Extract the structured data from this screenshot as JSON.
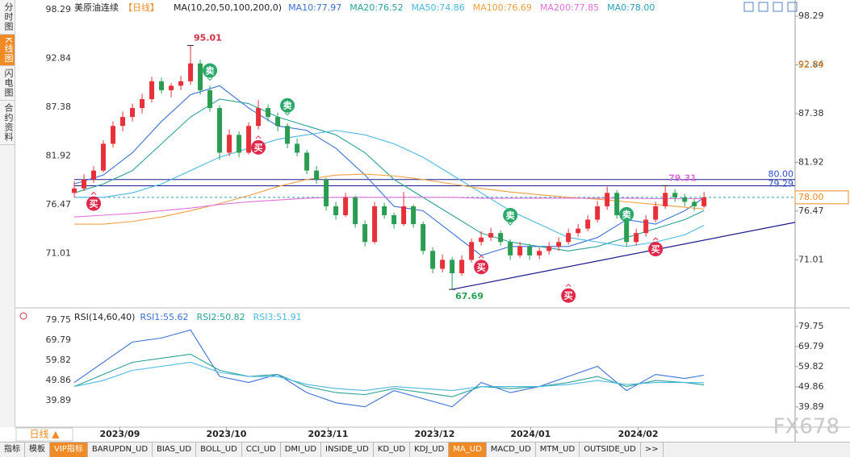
{
  "sidebar": [
    "分时图",
    "K线图",
    "闪电图",
    "合约资料"
  ],
  "tabs": [
    "指标",
    "模板",
    "VIP指标",
    "BARUPDN_UD",
    "BIAS_UD",
    "BOLL_UD",
    "CCI_UD",
    "DMI_UD",
    "INSIDE_UD",
    "KD_UD",
    "KDJ_UD",
    "MA_UD",
    "MACD_UD",
    "MTM_UD",
    "OUTSIDE_UD",
    ">>"
  ],
  "period_button": "日线 ▲",
  "watermark": "FX678",
  "chart_data": [
    {
      "type": "candlestick",
      "title": "美原油连续",
      "period": "【日线】",
      "indicator": "MA(10,20,50,100,200,0)",
      "up_color": "#e8303a",
      "down_color": "#2a9d52",
      "ylim": [
        65.8,
        99.2
      ],
      "yticks": [
        98.29,
        92.84,
        87.38,
        81.92,
        76.47,
        71.01
      ],
      "xlim": [
        -6,
        74.4
      ],
      "xticks": [
        {
          "value": 4.7,
          "label": "2023/09"
        },
        {
          "value": 15.7,
          "label": "2023/10"
        },
        {
          "value": 26.2,
          "label": "2023/11"
        },
        {
          "value": 37.2,
          "label": "2023/12"
        },
        {
          "value": 47.1,
          "label": "2024/01"
        },
        {
          "value": 58.2,
          "label": "2024/02"
        }
      ],
      "candles": [
        [
          78.5,
          79.8,
          78,
          79
        ],
        [
          79,
          80.6,
          78.7,
          80
        ],
        [
          80,
          81.5,
          79.6,
          81
        ],
        [
          81,
          84.4,
          80.8,
          84
        ],
        [
          84,
          86.5,
          83.6,
          86
        ],
        [
          86,
          87.6,
          85.4,
          87
        ],
        [
          87,
          88.5,
          86.5,
          88
        ],
        [
          88,
          89.6,
          87.4,
          89
        ],
        [
          89,
          91.5,
          88.6,
          91
        ],
        [
          91,
          91.4,
          89.6,
          90
        ],
        [
          90,
          90.8,
          89.2,
          90.5
        ],
        [
          90.5,
          91.6,
          90,
          91
        ],
        [
          91,
          95.01,
          90.6,
          93
        ],
        [
          93,
          93.4,
          89.5,
          90
        ],
        [
          90,
          90.5,
          87.6,
          88
        ],
        [
          88,
          88.3,
          82.2,
          83
        ],
        [
          83,
          85.6,
          82.6,
          85
        ],
        [
          85,
          85.4,
          82.5,
          83
        ],
        [
          83,
          86.4,
          82.8,
          86
        ],
        [
          86,
          88.9,
          85.6,
          88
        ],
        [
          88,
          88.4,
          86.5,
          87
        ],
        [
          87,
          87.5,
          85.4,
          86
        ],
        [
          86,
          86.3,
          83.5,
          84
        ],
        [
          84,
          84.6,
          82.6,
          83
        ],
        [
          83,
          83.3,
          80.6,
          81
        ],
        [
          81,
          81.5,
          79.5,
          80
        ],
        [
          80,
          80.2,
          76.5,
          77
        ],
        [
          77,
          77.5,
          75.5,
          76
        ],
        [
          76,
          78.5,
          75.8,
          78
        ],
        [
          78,
          78.2,
          74.6,
          75
        ],
        [
          75,
          75.4,
          72.5,
          73
        ],
        [
          73,
          77.5,
          72.8,
          77
        ],
        [
          77,
          77.4,
          75.6,
          76
        ],
        [
          76,
          76.3,
          74.5,
          75
        ],
        [
          75,
          78.6,
          74.8,
          77
        ],
        [
          77,
          77.2,
          74.6,
          75
        ],
        [
          75,
          75.3,
          71.6,
          72
        ],
        [
          72,
          72.4,
          69.5,
          70
        ],
        [
          70,
          71.6,
          69.6,
          71
        ],
        [
          71,
          71.3,
          67.69,
          69.5
        ],
        [
          69.5,
          71.5,
          69.2,
          71
        ],
        [
          71,
          73.4,
          70.7,
          73
        ],
        [
          73,
          74.2,
          72.6,
          73.5
        ],
        [
          73.5,
          74.6,
          73.1,
          74
        ],
        [
          74,
          74.3,
          72.6,
          73
        ],
        [
          73,
          73.3,
          71,
          71.5
        ],
        [
          71.5,
          73,
          71.2,
          72.5
        ],
        [
          72.5,
          72.8,
          71,
          71.5
        ],
        [
          71.5,
          72.4,
          71.1,
          72
        ],
        [
          72,
          73,
          71.6,
          72.5
        ],
        [
          72.5,
          73.5,
          72,
          73
        ],
        [
          73,
          74.5,
          72.7,
          74
        ],
        [
          74,
          75,
          73.6,
          74.5
        ],
        [
          74.5,
          76,
          74.2,
          75.5
        ],
        [
          75.5,
          77.6,
          75.2,
          77
        ],
        [
          77,
          79.2,
          76.6,
          78.5
        ],
        [
          78.5,
          78.8,
          75.6,
          76
        ],
        [
          76,
          76.3,
          72.5,
          73
        ],
        [
          73,
          74.5,
          72.6,
          74
        ],
        [
          74,
          76,
          73.6,
          75.5
        ],
        [
          75.5,
          77.5,
          75.2,
          77
        ],
        [
          77,
          79.31,
          76.7,
          78.5
        ],
        [
          78.5,
          78.9,
          77.5,
          78
        ],
        [
          78,
          78.4,
          77,
          77.5
        ],
        [
          77.5,
          77.8,
          76.5,
          77
        ],
        [
          77,
          78.6,
          76.8,
          78
        ]
      ],
      "line_index": [
        0,
        3,
        6,
        9,
        12,
        15,
        18,
        21,
        24,
        27,
        30,
        33,
        36,
        39,
        42,
        45,
        48,
        51,
        54,
        57,
        60,
        63,
        65
      ],
      "series": [
        {
          "name": "MA10:77.97",
          "color": "#3b6fd6",
          "values": [
            79.5,
            80.5,
            83,
            86.5,
            89.5,
            90.5,
            88,
            86,
            85.5,
            83.5,
            80.5,
            77,
            76.5,
            74,
            71.5,
            72.5,
            72.5,
            72.5,
            73.5,
            75.5,
            75,
            76.5,
            77.97
          ]
        },
        {
          "name": "MA20:76.52",
          "color": "#2aa198",
          "values": [
            78.5,
            79.5,
            81,
            84,
            87,
            89,
            88.5,
            87,
            86,
            85,
            83,
            80,
            78,
            76,
            74,
            73,
            72.5,
            72,
            72.5,
            73.5,
            74.5,
            75.5,
            76.52
          ]
        },
        {
          "name": "MA50:74.86",
          "color": "#4bb8e0",
          "values": [
            78,
            78,
            78.5,
            79.5,
            81,
            82.5,
            83.5,
            84.5,
            85,
            85.5,
            85,
            84,
            82.5,
            80.5,
            78.5,
            76.5,
            75,
            73.5,
            73,
            72.5,
            73,
            73.8,
            74.86
          ]
        },
        {
          "name": "MA100:76.69",
          "color": "#f0a040",
          "values": [
            75,
            75,
            75.3,
            75.8,
            76.5,
            77.3,
            78.2,
            79.2,
            80,
            80.5,
            80.6,
            80.4,
            80,
            79.5,
            79,
            78.6,
            78.3,
            78,
            77.8,
            77.5,
            77.2,
            76.9,
            76.69
          ]
        },
        {
          "name": "MA200:77.85",
          "color": "#e070d8",
          "values": [
            75.8,
            76,
            76.2,
            76.5,
            76.8,
            77.2,
            77.5,
            77.7,
            77.9,
            78,
            78,
            78,
            78,
            78,
            77.9,
            77.9,
            77.9,
            77.9,
            77.9,
            77.9,
            77.85,
            77.85,
            77.85
          ]
        }
      ],
      "ma0": {
        "name": "MA0:78.00",
        "value": 78,
        "color": "#2a9fb8"
      },
      "hlines": [
        {
          "value": 80,
          "label": "80.00"
        },
        {
          "value": 79.29,
          "label": "79.29"
        }
      ],
      "hline_color": "#1a1a8c",
      "trendline": {
        "from": [
          39,
          67.69
        ],
        "to": [
          74.4,
          75.2
        ]
      },
      "annotations": [
        {
          "value": 95.01,
          "index": 12,
          "color": "#d23040"
        },
        {
          "value": 67.69,
          "index": 39,
          "color": "#2a9d52"
        },
        {
          "value": 79.31,
          "index": 61,
          "color": "#e070d8"
        }
      ],
      "price_tags": [
        {
          "value": 92.79,
          "color": "#f08a24"
        },
        {
          "value": 78,
          "label": "78.00",
          "color": "#f08a24"
        }
      ],
      "signals": [
        {
          "label": "买",
          "index": 2,
          "price": 77.3
        },
        {
          "label": "卖",
          "index": 14,
          "price": 92.2
        },
        {
          "label": "买",
          "index": 19,
          "price": 83.6
        },
        {
          "label": "卖",
          "index": 22,
          "price": 88.3
        },
        {
          "label": "买",
          "index": 42,
          "price": 70.2
        },
        {
          "label": "卖",
          "index": 45,
          "price": 76
        },
        {
          "label": "买",
          "index": 51,
          "price": 67
        },
        {
          "label": "卖",
          "index": 57,
          "price": 76.1
        },
        {
          "label": "买",
          "index": 60,
          "price": 72.2
        }
      ],
      "buy_color": "#e0294a",
      "sell_color": "#2aa86a"
    },
    {
      "type": "line",
      "title": "RSI(14,60,40)",
      "ylim": [
        30.7,
        87.7
      ],
      "yticks": [
        79.75,
        69.79,
        59.82,
        49.86,
        39.89
      ],
      "line_index": [
        0,
        3,
        6,
        9,
        12,
        15,
        18,
        21,
        24,
        27,
        30,
        33,
        36,
        39,
        42,
        45,
        48,
        51,
        54,
        57,
        60,
        63,
        65
      ],
      "series": [
        {
          "name": "RSI1:55.62",
          "color": "#3b6fd6",
          "values": [
            52,
            62,
            72,
            74,
            78,
            55,
            52,
            56,
            47,
            42,
            40,
            48,
            44,
            40,
            52,
            47,
            50,
            55,
            60,
            48,
            56,
            54,
            55.62
          ]
        },
        {
          "name": "RSI2:50.82",
          "color": "#2aa198",
          "values": [
            50,
            56,
            62,
            64,
            66,
            58,
            55,
            56,
            50,
            47,
            46,
            49,
            47,
            45,
            50,
            49,
            50,
            52,
            55,
            50,
            53,
            52,
            50.82
          ]
        },
        {
          "name": "RSI3:51.91",
          "color": "#4bb8e0",
          "values": [
            50,
            53,
            58,
            60,
            62,
            57,
            55,
            55,
            51,
            49,
            48,
            50,
            49,
            48,
            50,
            50,
            50,
            51,
            53,
            51,
            52,
            52,
            51.91
          ]
        }
      ]
    }
  ]
}
